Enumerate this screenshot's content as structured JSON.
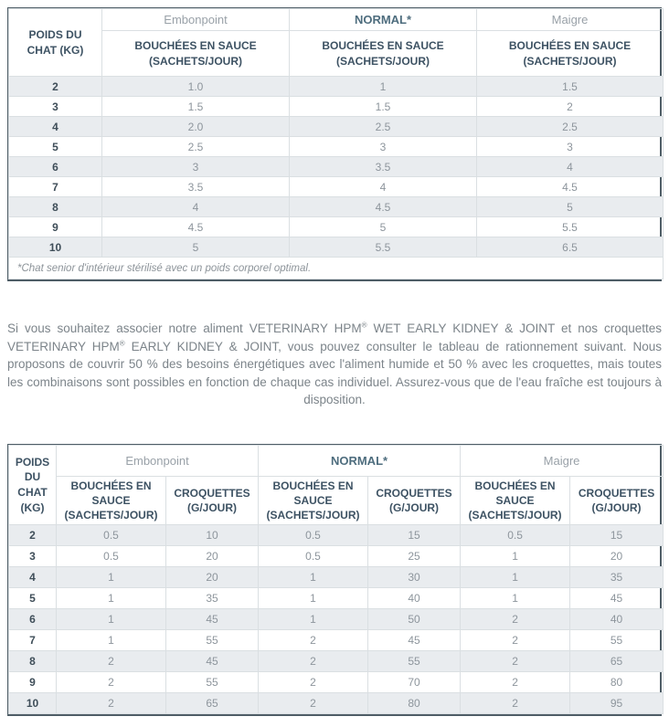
{
  "colors": {
    "outer_border": "#4e5d66",
    "inner_border": "#dadfe2",
    "row_stripe": "#e9ecef",
    "header_navy": "#3d5263",
    "normal_blue": "#4e6d7e",
    "grey_text": "#8d959c",
    "paragraph_text": "#7c848a"
  },
  "wet_table": {
    "weight_header": "POIDS DU CHAT (KG)",
    "groups": [
      "Embonpoint",
      "NORMAL*",
      "Maigre"
    ],
    "subheader": "BOUCHÉES EN SAUCE (SACHETS/JOUR)",
    "rows": [
      {
        "weight": "2",
        "values": [
          "1.0",
          "1",
          "1.5"
        ]
      },
      {
        "weight": "3",
        "values": [
          "1.5",
          "1.5",
          "2"
        ]
      },
      {
        "weight": "4",
        "values": [
          "2.0",
          "2.5",
          "2.5"
        ]
      },
      {
        "weight": "5",
        "values": [
          "2.5",
          "3",
          "3"
        ]
      },
      {
        "weight": "6",
        "values": [
          "3",
          "3.5",
          "4"
        ]
      },
      {
        "weight": "7",
        "values": [
          "3.5",
          "4",
          "4.5"
        ]
      },
      {
        "weight": "8",
        "values": [
          "4",
          "4.5",
          "5"
        ]
      },
      {
        "weight": "9",
        "values": [
          "4.5",
          "5",
          "5.5"
        ]
      },
      {
        "weight": "10",
        "values": [
          "5",
          "5.5",
          "6.5"
        ]
      }
    ],
    "footnote": "*Chat senior d'intérieur stérilisé avec un poids corporel optimal."
  },
  "paragraph": {
    "segments": [
      {
        "text": "Si vous souhaitez associer notre aliment VETERINARY HPM"
      },
      {
        "sup": "®"
      },
      {
        "text": " WET EARLY KIDNEY & JOINT et nos croquettes VETERINARY HPM"
      },
      {
        "sup": "®"
      },
      {
        "text": " EARLY KIDNEY & JOINT, vous pouvez consulter le tableau de rationnement suivant. Nous proposons de couvrir 50 % des besoins énergétiques avec l'aliment humide et 50 % avec les croquettes, mais toutes les combinaisons sont possibles en fonction de chaque cas individuel. Assurez-vous que de l'eau fraîche est toujours à disposition."
      }
    ]
  },
  "combo_table": {
    "weight_header": "POIDS DU CHAT (KG)",
    "groups": [
      "Embonpoint",
      "NORMAL*",
      "Maigre"
    ],
    "subheaders": [
      "BOUCHÉES EN SAUCE (SACHETS/JOUR)",
      "CROQUETTES (G/JOUR)"
    ],
    "rows": [
      {
        "weight": "2",
        "values": [
          "0.5",
          "10",
          "0.5",
          "15",
          "0.5",
          "15"
        ]
      },
      {
        "weight": "3",
        "values": [
          "0.5",
          "20",
          "0.5",
          "25",
          "1",
          "20"
        ]
      },
      {
        "weight": "4",
        "values": [
          "1",
          "20",
          "1",
          "30",
          "1",
          "35"
        ]
      },
      {
        "weight": "5",
        "values": [
          "1",
          "35",
          "1",
          "40",
          "1",
          "45"
        ]
      },
      {
        "weight": "6",
        "values": [
          "1",
          "45",
          "1",
          "50",
          "2",
          "40"
        ]
      },
      {
        "weight": "7",
        "values": [
          "1",
          "55",
          "2",
          "45",
          "2",
          "55"
        ]
      },
      {
        "weight": "8",
        "values": [
          "2",
          "45",
          "2",
          "55",
          "2",
          "65"
        ]
      },
      {
        "weight": "9",
        "values": [
          "2",
          "55",
          "2",
          "70",
          "2",
          "80"
        ]
      },
      {
        "weight": "10",
        "values": [
          "2",
          "65",
          "2",
          "80",
          "2",
          "95"
        ]
      }
    ]
  }
}
